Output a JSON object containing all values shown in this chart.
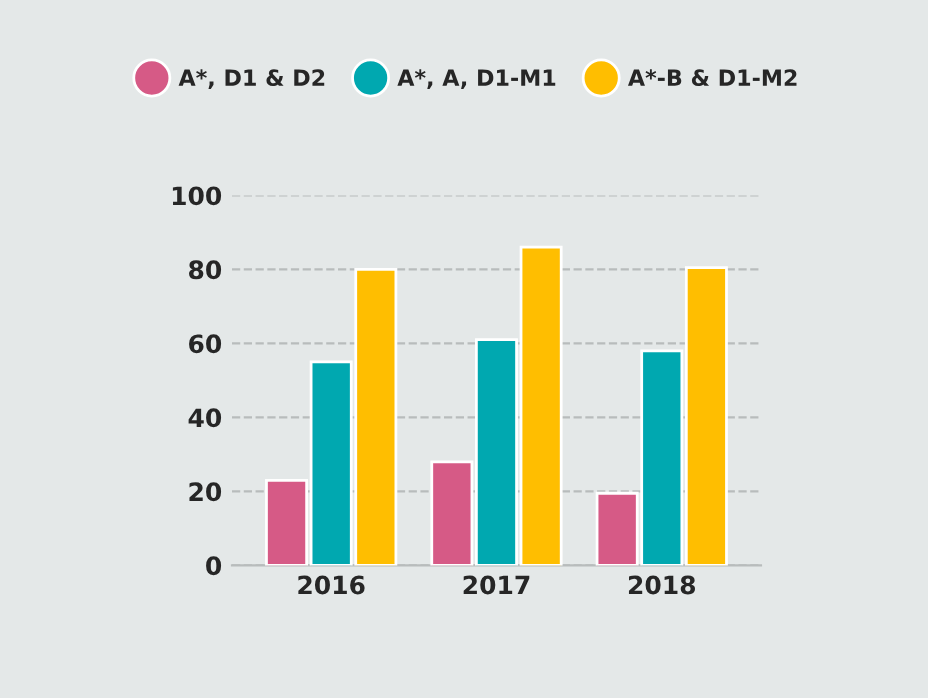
{
  "chart_data": {
    "type": "bar",
    "categories": [
      "2016",
      "2017",
      "2018"
    ],
    "series": [
      {
        "name": "A*, D1 & D2",
        "color": "#d65a86",
        "values": [
          23,
          28,
          19.5
        ]
      },
      {
        "name": "A*, A, D1-M1",
        "color": "#00a8b0",
        "values": [
          55,
          61,
          58
        ]
      },
      {
        "name": "A*-B & D1-M2",
        "color": "#ffbe00",
        "values": [
          80,
          86,
          80.5
        ]
      }
    ],
    "ylim": [
      0,
      100
    ],
    "yticks": [
      0,
      20,
      40,
      60,
      80,
      100
    ],
    "grid": "y",
    "legend": "top"
  }
}
